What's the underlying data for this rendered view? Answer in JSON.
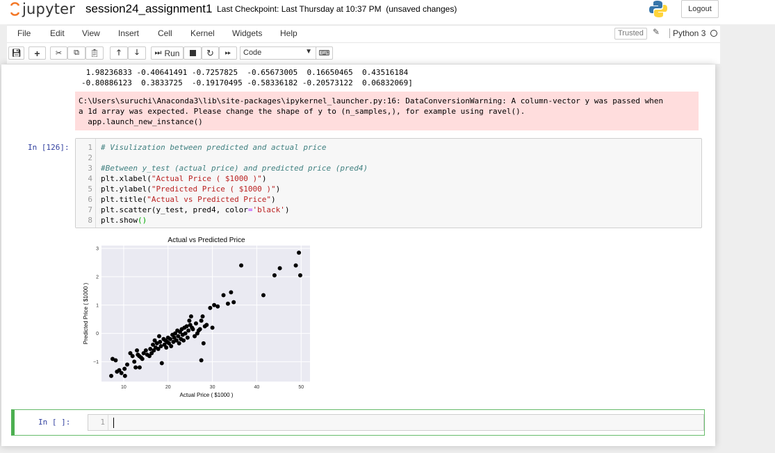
{
  "header": {
    "logo_text": "jupyter",
    "notebook_name": "session24_assignment1",
    "checkpoint": "Last Checkpoint: Last Thursday at 10:37 PM",
    "unsaved": "(unsaved changes)",
    "logout_label": "Logout"
  },
  "menu": {
    "items": [
      "File",
      "Edit",
      "View",
      "Insert",
      "Cell",
      "Kernel",
      "Widgets",
      "Help"
    ],
    "trusted_label": "Trusted",
    "kernel_name": "Python 3"
  },
  "toolbar": {
    "run_label": "Run",
    "cell_type": "Code"
  },
  "output_prev": {
    "line1": " 1.98236833 -0.40641491 -0.7257825  -0.65673005  0.16650465  0.43516184",
    "line2": "-0.80886123  0.3833725  -0.19170495 -0.58336182 -0.20573122  0.06832069]"
  },
  "stderr": {
    "line1": "C:\\Users\\suruchi\\Anaconda3\\lib\\site-packages\\ipykernel_launcher.py:16: DataConversionWarning: A column-vector y was passed when",
    "line2": "a 1d array was expected. Please change the shape of y to (n_samples,), for example using ravel().",
    "line3": "  app.launch_new_instance()"
  },
  "cell": {
    "prompt": "In [126]:",
    "line_numbers": [
      "1",
      "2",
      "3",
      "4",
      "5",
      "6",
      "7",
      "8"
    ],
    "code": {
      "l1": "# Visulization between predicted and actual price",
      "l3": "#Between y_test (actual price) and predicted price (pred4)",
      "l4a": "plt.xlabel(",
      "l4b": "\"Actual Price ( $1000 )\"",
      "l4c": ")",
      "l5a": "plt.ylabel(",
      "l5b": "\"Predicted Price ( $1000 )\"",
      "l5c": ")",
      "l6a": "plt.title(",
      "l6b": "\"Actual vs Predicted Price\"",
      "l6c": ")",
      "l7a": "plt.scatter(y_test, pred4, color",
      "l7b": "=",
      "l7c": "'black'",
      "l7d": ")",
      "l8a": "plt.show",
      "l8b": "()"
    }
  },
  "empty_cell": {
    "prompt": "In [ ]:",
    "line_number": "1"
  },
  "chart_data": {
    "type": "scatter",
    "title": "Actual vs Predicted Price",
    "xlabel": "Actual Price ( $1000 )",
    "ylabel": "Predicted Price ( $1000 )",
    "xlim": [
      5,
      52
    ],
    "ylim": [
      -1.7,
      3.1
    ],
    "xticks": [
      10,
      20,
      30,
      40,
      50
    ],
    "yticks": [
      -1,
      0,
      1,
      2,
      3
    ],
    "grid": true,
    "color": "#000000",
    "background": "#eaeaf2",
    "points": [
      [
        7.2,
        -1.5
      ],
      [
        7.5,
        -0.9
      ],
      [
        8.2,
        -0.95
      ],
      [
        8.5,
        -1.35
      ],
      [
        9,
        -1.3
      ],
      [
        9.5,
        -1.4
      ],
      [
        10.2,
        -1.25
      ],
      [
        10.3,
        -1.5
      ],
      [
        10.8,
        -1.1
      ],
      [
        11.5,
        -0.7
      ],
      [
        12,
        -0.8
      ],
      [
        12.4,
        -1.0
      ],
      [
        12.7,
        -1.2
      ],
      [
        13,
        -0.6
      ],
      [
        13.2,
        -0.75
      ],
      [
        13.5,
        -0.8
      ],
      [
        13.6,
        -1.2
      ],
      [
        13.9,
        -0.85
      ],
      [
        14.2,
        -0.9
      ],
      [
        14.5,
        -0.7
      ],
      [
        15,
        -0.6
      ],
      [
        15.3,
        -0.75
      ],
      [
        15.8,
        -0.8
      ],
      [
        16,
        -0.55
      ],
      [
        16.3,
        -0.7
      ],
      [
        16.6,
        -0.4
      ],
      [
        16.8,
        -0.6
      ],
      [
        17,
        -0.25
      ],
      [
        17.2,
        -0.5
      ],
      [
        17.5,
        -0.35
      ],
      [
        17.8,
        -0.55
      ],
      [
        18,
        -0.1
      ],
      [
        18.2,
        -0.3
      ],
      [
        18.4,
        -0.45
      ],
      [
        18.6,
        -1.05
      ],
      [
        19,
        -0.2
      ],
      [
        19.2,
        -0.4
      ],
      [
        19.4,
        -0.25
      ],
      [
        19.6,
        -0.5
      ],
      [
        19.8,
        -0.3
      ],
      [
        20,
        -0.15
      ],
      [
        20.2,
        -0.35
      ],
      [
        20.5,
        -0.2
      ],
      [
        20.7,
        -0.45
      ],
      [
        21,
        -0.05
      ],
      [
        21.2,
        -0.3
      ],
      [
        21.4,
        -0.15
      ],
      [
        21.6,
        0.0
      ],
      [
        21.9,
        -0.25
      ],
      [
        22.1,
        0.1
      ],
      [
        22.3,
        -0.1
      ],
      [
        22.5,
        -0.35
      ],
      [
        22.7,
        0.05
      ],
      [
        22.9,
        -0.2
      ],
      [
        23.1,
        0.15
      ],
      [
        23.3,
        -0.05
      ],
      [
        23.5,
        -0.25
      ],
      [
        23.7,
        0.2
      ],
      [
        23.9,
        0.0
      ],
      [
        24.2,
        0.25
      ],
      [
        24.4,
        -0.15
      ],
      [
        24.6,
        0.1
      ],
      [
        24.8,
        0.45
      ],
      [
        25,
        0.3
      ],
      [
        25.2,
        0.6
      ],
      [
        25.4,
        0.2
      ],
      [
        25.6,
        0.15
      ],
      [
        26,
        -0.1
      ],
      [
        26.3,
        0.35
      ],
      [
        26.6,
        0.0
      ],
      [
        26.9,
        0.1
      ],
      [
        27.2,
        0.15
      ],
      [
        27.5,
        0.45
      ],
      [
        27.8,
        0.6
      ],
      [
        28,
        -0.35
      ],
      [
        28.3,
        0.25
      ],
      [
        28.7,
        0.3
      ],
      [
        27.5,
        -0.95
      ],
      [
        29.5,
        0.9
      ],
      [
        30,
        0.2
      ],
      [
        30.4,
        1.0
      ],
      [
        31.2,
        0.95
      ],
      [
        32.5,
        1.35
      ],
      [
        33.5,
        1.05
      ],
      [
        34.2,
        1.45
      ],
      [
        34.8,
        1.1
      ],
      [
        36.5,
        2.4
      ],
      [
        41.5,
        1.35
      ],
      [
        44,
        2.05
      ],
      [
        45.2,
        2.3
      ],
      [
        48.8,
        2.4
      ],
      [
        49.5,
        2.85
      ],
      [
        49.8,
        2.05
      ]
    ]
  }
}
